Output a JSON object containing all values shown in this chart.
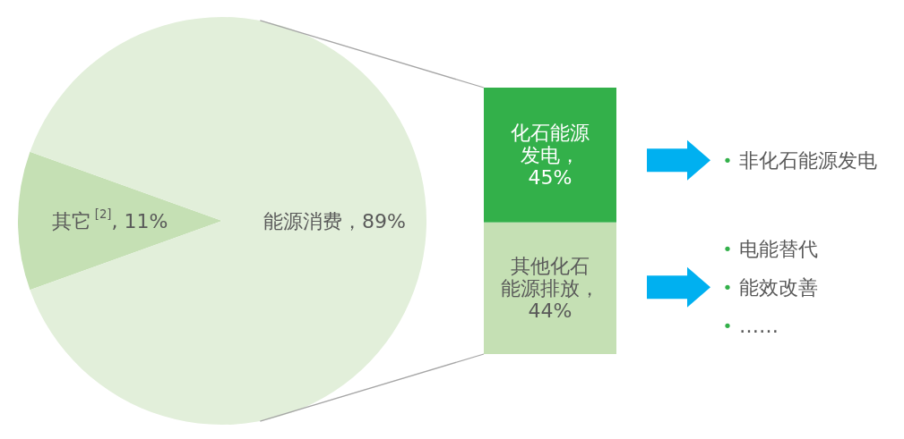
{
  "chart_data": [
    {
      "type": "pie",
      "categories": [
        "其它$^{[2]}$",
        "能源消费"
      ],
      "values": [
        11,
        89
      ],
      "colors": [
        "#c5e0b4",
        "#e2efda"
      ],
      "value_labels": [
        ", 11%",
        "，89%"
      ]
    },
    {
      "type": "bar",
      "stacked": true,
      "categories": [
        null
      ],
      "series": [
        {
          "name": "其他化石能源排放，",
          "color": "#c5e0b4",
          "values": [
            44
          ],
          "value_labels": [
            "44%"
          ]
        },
        {
          "name": "化石能源发电，",
          "color": "#33b04a",
          "values": [
            45
          ],
          "value_labels": [
            "45%"
          ]
        }
      ]
    },
    {
      "type": "other",
      "annotations": [
        "非化石能源发电",
        "电能替代",
        "能效改善",
        "……"
      ]
    }
  ]
}
